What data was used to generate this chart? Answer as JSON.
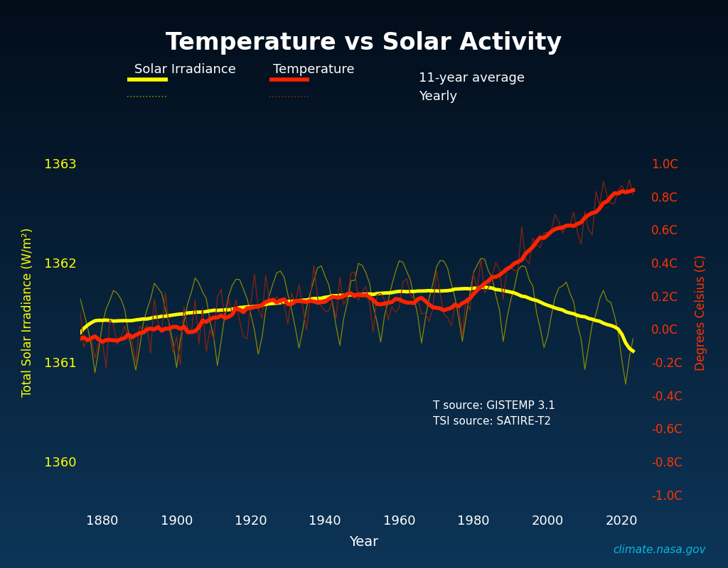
{
  "title": "Temperature vs Solar Activity",
  "xlabel": "Year",
  "ylabel_left": "Total Solar Irradiance (W/m²)",
  "ylabel_right": "Degrees Celsius (C)",
  "bg_top_color": "#020d1a",
  "bg_bottom_color": "#0a2540",
  "title_color": "#ffffff",
  "left_label_color": "#ffff00",
  "right_label_color": "#ff3300",
  "xlabel_color": "#ffffff",
  "left_tick_color": "#ffff00",
  "right_tick_color": "#ff3300",
  "xtick_color": "#ffffff",
  "tsi_avg_color": "#ffff00",
  "tsi_yearly_color": "#888800",
  "temp_avg_color": "#ff2200",
  "temp_yearly_color": "#882211",
  "tsi_ylim": [
    1359.5,
    1363.5
  ],
  "temp_ylim": [
    -1.1,
    1.3
  ],
  "xlim": [
    1874,
    2027
  ],
  "xticks": [
    1880,
    1900,
    1920,
    1940,
    1960,
    1980,
    2000,
    2020
  ],
  "left_yticks": [
    1360,
    1361,
    1362,
    1363
  ],
  "right_ytick_labels": [
    "-1.0C",
    "-0.8C",
    "-0.6C",
    "-0.4C",
    "-0.2C",
    "0.0C",
    "0.2C",
    "0.4C",
    "0.6C",
    "0.8C",
    "1.0C"
  ],
  "right_ytick_vals": [
    -1.0,
    -0.8,
    -0.6,
    -0.4,
    -0.2,
    0.0,
    0.2,
    0.4,
    0.6,
    0.8,
    1.0
  ],
  "annotation": "T source: GISTEMP 3.1\nTSI source: SATIRE-T2",
  "annotation_color": "#ffffff",
  "watermark": "climate.nasa.gov",
  "watermark_color": "#00bbdd"
}
